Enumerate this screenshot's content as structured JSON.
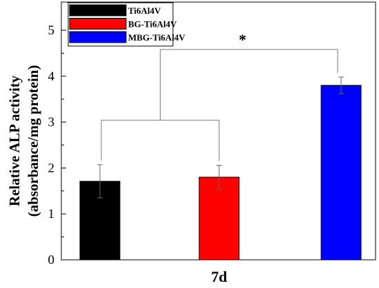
{
  "chart_data": {
    "type": "bar",
    "categories": [
      "Ti6Al4V",
      "BG-Ti6Al4V",
      "MBG-Ti6Al4V"
    ],
    "values": [
      1.71,
      1.8,
      3.8
    ],
    "errors": [
      0.36,
      0.26,
      0.18
    ],
    "colors": [
      "#000000",
      "#ff0000",
      "#0000ff"
    ],
    "xlabel": "7d",
    "ylabel_line1": "Relative ALP activity",
    "ylabel_line2": "(absorbance/mg protein)",
    "ylim": [
      0,
      5
    ],
    "yticks": [
      "0",
      "1",
      "2",
      "3",
      "4",
      "5"
    ],
    "legend": {
      "placement": "top-left",
      "entries": [
        "Ti6Al4V",
        "BG-Ti6Al4V",
        "MBG-Ti6Al4V"
      ]
    },
    "annotation": {
      "text": "*",
      "type": "significance-bracket"
    },
    "grid": false
  }
}
